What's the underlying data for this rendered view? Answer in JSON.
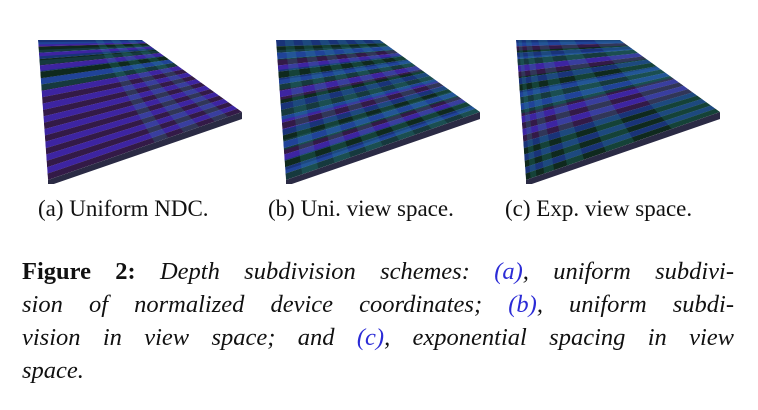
{
  "figure": {
    "panels": [
      {
        "id": "a",
        "subcaption": "(a) Uniform NDC.",
        "scheme": "uniform-ndc"
      },
      {
        "id": "b",
        "subcaption": "(b) Uni. view space.",
        "scheme": "uniform-view"
      },
      {
        "id": "c",
        "subcaption": "(c) Exp. view space.",
        "scheme": "exponential-view"
      }
    ],
    "caption": {
      "label": "Figure 2:",
      "l1_a": "Depth subdivision schemes:",
      "ref_a": "(a)",
      "l1_b": ", uniform subdivi-",
      "l2_a": "sion of normalized device coordinates;",
      "ref_b": "(b)",
      "l2_b": ", uniform subdi-",
      "l3_a": "vision in view space; and",
      "ref_c": "(c)",
      "l3_b": ", exponential spacing in view",
      "l4": "space."
    },
    "colors": {
      "blue": "#1a1a9a",
      "dark": "#0b0b16",
      "green": "#1a6b32",
      "teal": "#2e9a96",
      "magenta": "#8a3ab0",
      "link": "#2b2bd6"
    }
  }
}
